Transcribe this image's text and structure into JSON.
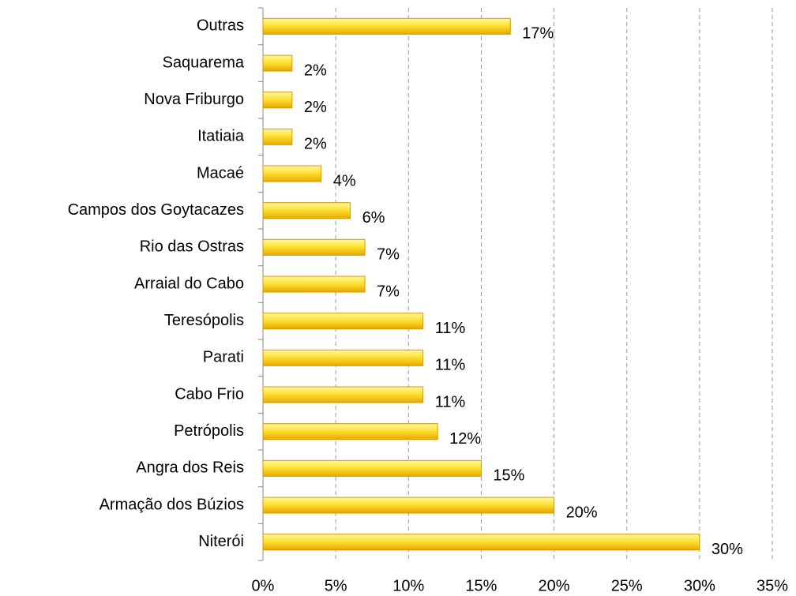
{
  "chart_data": {
    "type": "bar",
    "orientation": "horizontal",
    "categories": [
      "Outras",
      "Saquarema",
      "Nova Friburgo",
      "Itatiaia",
      "Macaé",
      "Campos dos Goytacazes",
      "Rio das Ostras",
      "Arraial do Cabo",
      "Teresópolis",
      "Parati",
      "Cabo Frio",
      "Petrópolis",
      "Angra dos Reis",
      "Armação dos Búzios",
      "Niterói"
    ],
    "values": [
      17,
      2,
      2,
      2,
      4,
      6,
      7,
      7,
      11,
      11,
      11,
      12,
      15,
      20,
      30
    ],
    "value_labels": [
      "17%",
      "2%",
      "2%",
      "2%",
      "4%",
      "6%",
      "7%",
      "7%",
      "11%",
      "11%",
      "11%",
      "12%",
      "15%",
      "20%",
      "30%"
    ],
    "color": "#f5c800",
    "xlim": [
      0,
      35
    ],
    "xticks": [
      {
        "value": 0,
        "label": "0%"
      },
      {
        "value": 5,
        "label": "5%"
      },
      {
        "value": 10,
        "label": "10%"
      },
      {
        "value": 15,
        "label": "15%"
      },
      {
        "value": 20,
        "label": "20%"
      },
      {
        "value": 25,
        "label": "25%"
      },
      {
        "value": 30,
        "label": "30%"
      },
      {
        "value": 35,
        "label": "35%"
      }
    ],
    "grid": true
  }
}
